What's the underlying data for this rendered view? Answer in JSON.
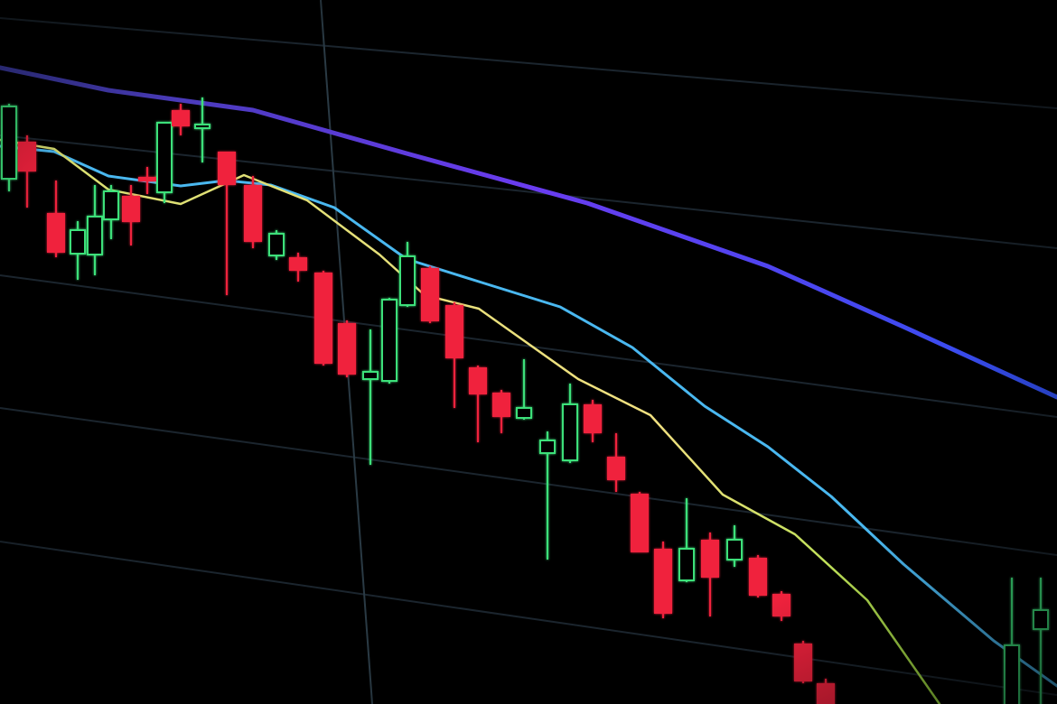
{
  "scene": {
    "subject": "candlestick-chart-on-screen",
    "colors": {
      "background": "#000000",
      "bullish_candle": "#3ee07a",
      "bearish_candle": "#f0203c",
      "moving_average_slow": "#5a3cf0",
      "moving_average_mid": "#4ab8f0",
      "moving_average_fast": "#e8e070",
      "grid": "#1f2a33"
    }
  }
}
